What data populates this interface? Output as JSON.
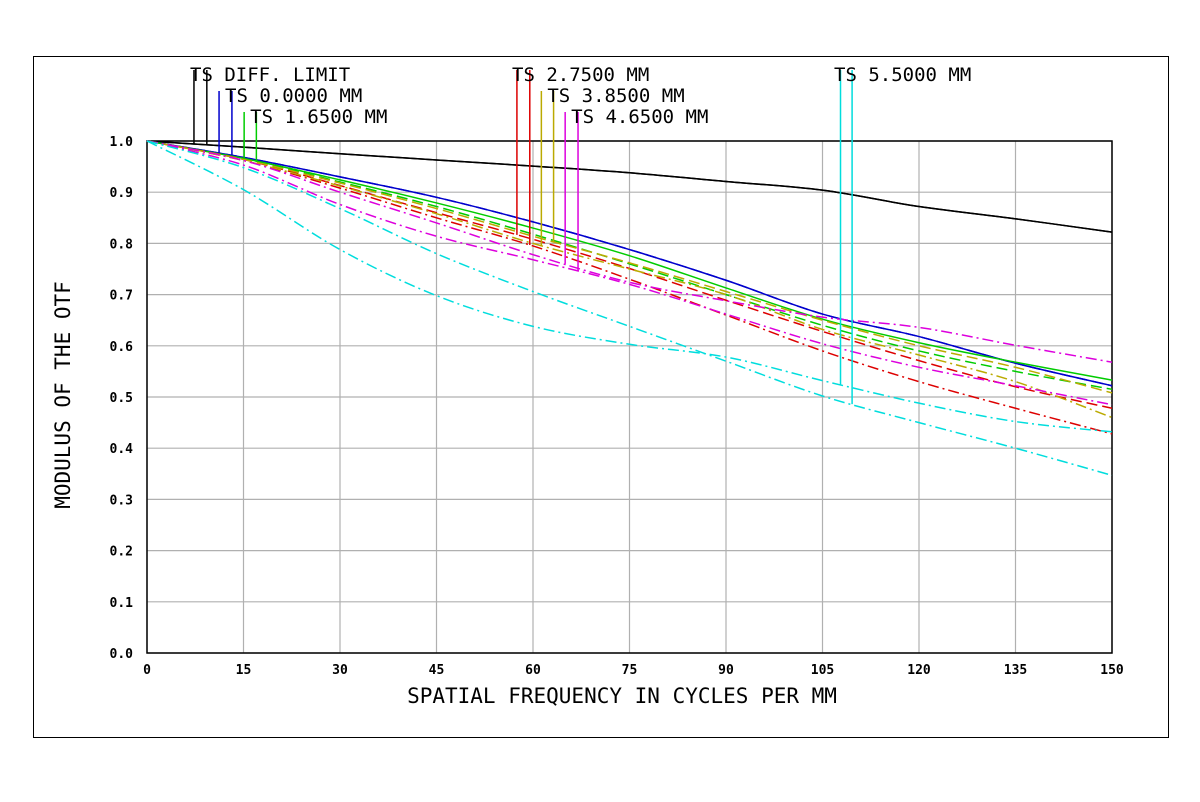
{
  "chart_data": {
    "type": "line",
    "title": "",
    "xlabel": "SPATIAL FREQUENCY IN CYCLES PER MM",
    "ylabel": "MODULUS OF THE OTF",
    "xlim": [
      0,
      150
    ],
    "ylim": [
      0,
      1.0
    ],
    "x_ticks": [
      0,
      15,
      30,
      45,
      60,
      75,
      90,
      105,
      120,
      135,
      150
    ],
    "y_ticks": [
      0.0,
      0.1,
      0.2,
      0.3,
      0.4,
      0.5,
      0.6,
      0.7,
      0.8,
      0.9,
      1.0
    ],
    "grid": true,
    "legend_position": "top",
    "x": [
      0,
      15,
      30,
      45,
      60,
      75,
      90,
      105,
      120,
      135,
      150
    ],
    "series": [
      {
        "name": "TS DIFF. LIMIT",
        "label": "DIFF. LIMIT",
        "field": null,
        "orientation": "T",
        "color": "#000000",
        "dash": "solid",
        "marker_x": 7.3,
        "values": [
          1.0,
          0.988,
          0.975,
          0.963,
          0.951,
          0.938,
          0.921,
          0.904,
          0.872,
          0.848,
          0.822
        ]
      },
      {
        "name": "TS DIFF. LIMIT",
        "label": "DIFF. LIMIT",
        "field": null,
        "orientation": "S",
        "color": "#000000",
        "dash": "solid",
        "marker_x": 9.3,
        "values": [
          1.0,
          0.988,
          0.975,
          0.963,
          0.951,
          0.938,
          0.921,
          0.904,
          0.872,
          0.848,
          0.822
        ]
      },
      {
        "name": "TS 0.0000 MM",
        "label": "0.0000 MM",
        "field": "0.0000 MM",
        "orientation": "T",
        "color": "#0000cc",
        "dash": "solid",
        "marker_x": 11.2,
        "values": [
          1.0,
          0.968,
          0.93,
          0.89,
          0.842,
          0.788,
          0.728,
          0.662,
          0.618,
          0.566,
          0.522
        ]
      },
      {
        "name": "TS 0.0000 MM",
        "label": "0.0000 MM",
        "field": "0.0000 MM",
        "orientation": "S",
        "color": "#0000cc",
        "dash": "longdash",
        "marker_x": 13.2,
        "values": [
          1.0,
          0.968,
          0.93,
          0.89,
          0.842,
          0.788,
          0.728,
          0.662,
          0.618,
          0.566,
          0.522
        ]
      },
      {
        "name": "TS 1.6500 MM",
        "label": "1.6500 MM",
        "field": "1.6500 MM",
        "orientation": "T",
        "color": "#00cc00",
        "dash": "solid",
        "marker_x": 15.1,
        "values": [
          1.0,
          0.966,
          0.924,
          0.879,
          0.83,
          0.776,
          0.713,
          0.652,
          0.606,
          0.568,
          0.533
        ]
      },
      {
        "name": "TS 1.6500 MM",
        "label": "1.6500 MM",
        "field": "1.6500 MM",
        "orientation": "S",
        "color": "#00cc00",
        "dash": "longdash",
        "marker_x": 17.0,
        "values": [
          1.0,
          0.965,
          0.92,
          0.872,
          0.818,
          0.76,
          0.7,
          0.64,
          0.59,
          0.55,
          0.515
        ]
      },
      {
        "name": "TS 2.7500 MM",
        "label": "2.7500 MM",
        "field": "2.7500 MM",
        "orientation": "T",
        "color": "#dd0000",
        "dash": "longdash",
        "marker_x": 57.5,
        "values": [
          1.0,
          0.964,
          0.913,
          0.86,
          0.808,
          0.751,
          0.689,
          0.628,
          0.571,
          0.52,
          0.478
        ]
      },
      {
        "name": "TS 2.7500 MM",
        "label": "2.7500 MM",
        "field": "2.7500 MM",
        "orientation": "S",
        "color": "#dd0000",
        "dash": "dashdot",
        "marker_x": 59.5,
        "values": [
          1.0,
          0.962,
          0.908,
          0.85,
          0.795,
          0.73,
          0.66,
          0.59,
          0.53,
          0.478,
          0.428
        ]
      },
      {
        "name": "TS 3.8500 MM",
        "label": "3.8500 MM",
        "field": "3.8500 MM",
        "orientation": "T",
        "color": "#bbaa00",
        "dash": "dashdot",
        "marker_x": 61.3,
        "values": [
          1.0,
          0.962,
          0.912,
          0.858,
          0.8,
          0.75,
          0.7,
          0.632,
          0.582,
          0.53,
          0.46
        ]
      },
      {
        "name": "TS 3.8500 MM",
        "label": "3.8500 MM",
        "field": "3.8500 MM",
        "orientation": "S",
        "color": "#bbaa00",
        "dash": "longdash",
        "marker_x": 63.2,
        "values": [
          1.0,
          0.964,
          0.918,
          0.868,
          0.814,
          0.762,
          0.706,
          0.65,
          0.6,
          0.558,
          0.508
        ]
      },
      {
        "name": "TS 4.6500 MM",
        "label": "4.6500 MM",
        "field": "4.6500 MM",
        "orientation": "T",
        "color": "#dd00dd",
        "dash": "dashdot",
        "marker_x": 65.0,
        "values": [
          1.0,
          0.962,
          0.9,
          0.84,
          0.778,
          0.724,
          0.688,
          0.656,
          0.636,
          0.601,
          0.568
        ]
      },
      {
        "name": "TS 4.6500 MM",
        "label": "4.6500 MM",
        "field": "4.6500 MM",
        "orientation": "S",
        "color": "#dd00dd",
        "dash": "dashdot",
        "marker_x": 67.0,
        "values": [
          1.0,
          0.953,
          0.876,
          0.814,
          0.768,
          0.72,
          0.662,
          0.604,
          0.558,
          0.522,
          0.485
        ]
      },
      {
        "name": "TS 5.5000 MM",
        "label": "5.5000 MM",
        "field": "5.5000 MM",
        "orientation": "T",
        "color": "#00dddd",
        "dash": "dashdot",
        "marker_x": 107.8,
        "values": [
          1.0,
          0.905,
          0.788,
          0.698,
          0.638,
          0.603,
          0.578,
          0.532,
          0.488,
          0.452,
          0.432
        ]
      },
      {
        "name": "TS 5.5000 MM",
        "label": "5.5000 MM",
        "field": "5.5000 MM",
        "orientation": "S",
        "color": "#00dddd",
        "dash": "dashdot",
        "marker_x": 109.6,
        "values": [
          1.0,
          0.948,
          0.868,
          0.78,
          0.706,
          0.638,
          0.57,
          0.502,
          0.45,
          0.4,
          0.347
        ]
      }
    ]
  }
}
